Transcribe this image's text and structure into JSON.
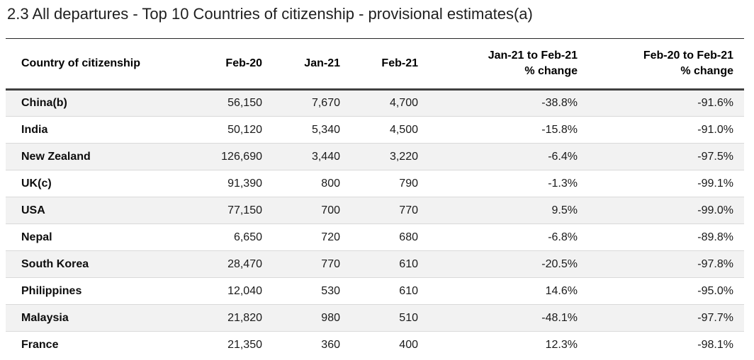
{
  "title": "2.3 All departures - Top 10 Countries of citizenship - provisional estimates(a)",
  "colors": {
    "stripe": "#f2f2f2",
    "row_separator": "#d9d9d9",
    "header_bottom_border": "#404040",
    "title_rule": "#262626",
    "text": "#1a1a1a"
  },
  "table": {
    "columns": [
      "Country of citizenship",
      "Feb-20",
      "Jan-21",
      "Feb-21",
      "Jan-21 to Feb-21\n% change",
      "Feb-20 to Feb-21\n% change"
    ],
    "rows": [
      [
        "China(b)",
        "56,150",
        "7,670",
        "4,700",
        "-38.8%",
        "-91.6%"
      ],
      [
        "India",
        "50,120",
        "5,340",
        "4,500",
        "-15.8%",
        "-91.0%"
      ],
      [
        "New Zealand",
        "126,690",
        "3,440",
        "3,220",
        "-6.4%",
        "-97.5%"
      ],
      [
        "UK(c)",
        "91,390",
        "800",
        "790",
        "-1.3%",
        "-99.1%"
      ],
      [
        "USA",
        "77,150",
        "700",
        "770",
        "9.5%",
        "-99.0%"
      ],
      [
        "Nepal",
        "6,650",
        "720",
        "680",
        "-6.8%",
        "-89.8%"
      ],
      [
        "South Korea",
        "28,470",
        "770",
        "610",
        "-20.5%",
        "-97.8%"
      ],
      [
        "Philippines",
        "12,040",
        "530",
        "610",
        "14.6%",
        "-95.0%"
      ],
      [
        "Malaysia",
        "21,820",
        "980",
        "510",
        "-48.1%",
        "-97.7%"
      ],
      [
        "France",
        "21,350",
        "360",
        "400",
        "12.3%",
        "-98.1%"
      ]
    ]
  },
  "chart_data": {
    "type": "table",
    "title": "2.3 All departures - Top 10 Countries of citizenship - provisional estimates(a)",
    "columns": [
      "Country of citizenship",
      "Feb-20",
      "Jan-21",
      "Feb-21",
      "Jan-21 to Feb-21 % change",
      "Feb-20 to Feb-21 % change"
    ],
    "rows": [
      {
        "country": "China(b)",
        "feb20": 56150,
        "jan21": 7670,
        "feb21": 4700,
        "jan21_to_feb21_pct": -38.8,
        "feb20_to_feb21_pct": -91.6
      },
      {
        "country": "India",
        "feb20": 50120,
        "jan21": 5340,
        "feb21": 4500,
        "jan21_to_feb21_pct": -15.8,
        "feb20_to_feb21_pct": -91.0
      },
      {
        "country": "New Zealand",
        "feb20": 126690,
        "jan21": 3440,
        "feb21": 3220,
        "jan21_to_feb21_pct": -6.4,
        "feb20_to_feb21_pct": -97.5
      },
      {
        "country": "UK(c)",
        "feb20": 91390,
        "jan21": 800,
        "feb21": 790,
        "jan21_to_feb21_pct": -1.3,
        "feb20_to_feb21_pct": -99.1
      },
      {
        "country": "USA",
        "feb20": 77150,
        "jan21": 700,
        "feb21": 770,
        "jan21_to_feb21_pct": 9.5,
        "feb20_to_feb21_pct": -99.0
      },
      {
        "country": "Nepal",
        "feb20": 6650,
        "jan21": 720,
        "feb21": 680,
        "jan21_to_feb21_pct": -6.8,
        "feb20_to_feb21_pct": -89.8
      },
      {
        "country": "South Korea",
        "feb20": 28470,
        "jan21": 770,
        "feb21": 610,
        "jan21_to_feb21_pct": -20.5,
        "feb20_to_feb21_pct": -97.8
      },
      {
        "country": "Philippines",
        "feb20": 12040,
        "jan21": 530,
        "feb21": 610,
        "jan21_to_feb21_pct": 14.6,
        "feb20_to_feb21_pct": -95.0
      },
      {
        "country": "Malaysia",
        "feb20": 21820,
        "jan21": 980,
        "feb21": 510,
        "jan21_to_feb21_pct": -48.1,
        "feb20_to_feb21_pct": -97.7
      },
      {
        "country": "France",
        "feb20": 21350,
        "jan21": 360,
        "feb21": 400,
        "jan21_to_feb21_pct": 12.3,
        "feb20_to_feb21_pct": -98.1
      }
    ]
  }
}
